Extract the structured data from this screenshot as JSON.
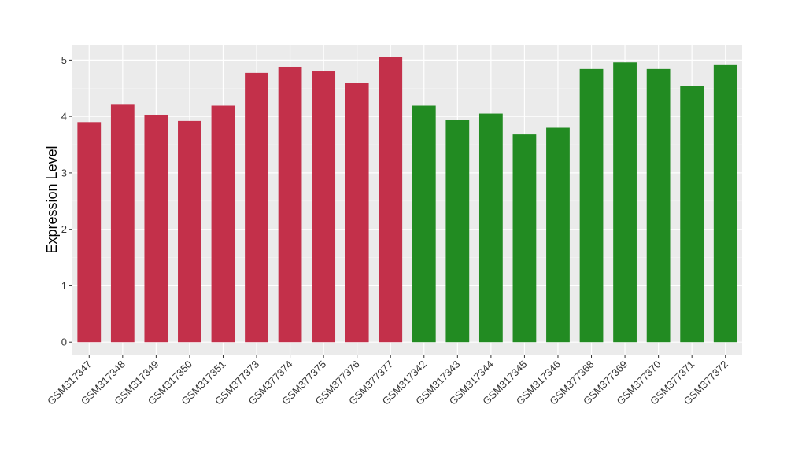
{
  "chart_data": {
    "type": "bar",
    "title": "",
    "xlabel": "",
    "ylabel": "Expression Level",
    "ylim": [
      -0.22,
      5.27
    ],
    "yticks": [
      0,
      1,
      2,
      3,
      4,
      5
    ],
    "grid": true,
    "categories": [
      "GSM317347",
      "GSM317348",
      "GSM317349",
      "GSM317350",
      "GSM317351",
      "GSM377373",
      "GSM377374",
      "GSM377375",
      "GSM377376",
      "GSM377377",
      "GSM317342",
      "GSM317343",
      "GSM317344",
      "GSM317345",
      "GSM317346",
      "GSM377368",
      "GSM377369",
      "GSM377370",
      "GSM377371",
      "GSM377372"
    ],
    "values": [
      3.9,
      4.22,
      4.03,
      3.92,
      4.19,
      4.77,
      4.88,
      4.81,
      4.6,
      5.05,
      4.19,
      3.94,
      4.05,
      3.68,
      3.8,
      4.84,
      4.96,
      4.84,
      4.54,
      4.91
    ],
    "groups": [
      "red",
      "red",
      "red",
      "red",
      "red",
      "red",
      "red",
      "red",
      "red",
      "red",
      "green",
      "green",
      "green",
      "green",
      "green",
      "green",
      "green",
      "green",
      "green",
      "green"
    ],
    "colors": {
      "red": "#C3304A",
      "green": "#228B22",
      "panel": "#EBEBEB",
      "grid_major": "#FFFFFF",
      "grid_minor": "#F5F5F5"
    }
  }
}
